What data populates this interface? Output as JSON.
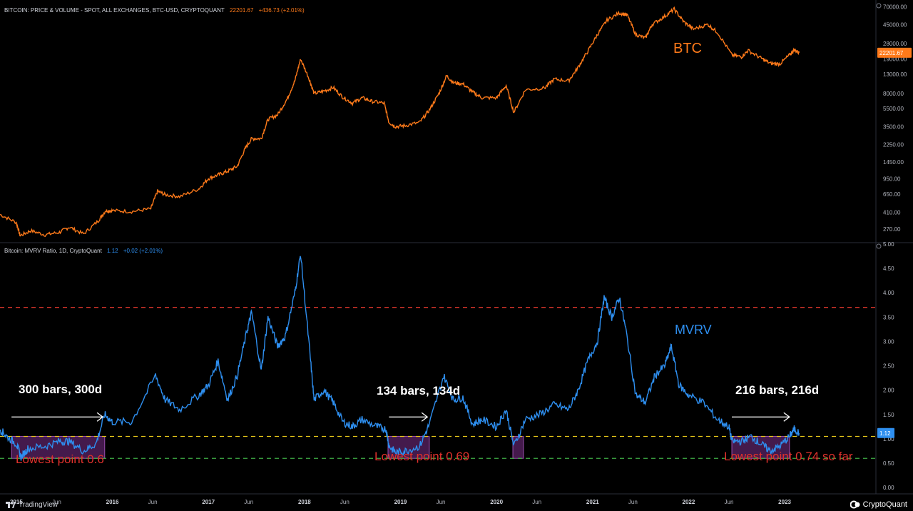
{
  "colors": {
    "background": "#000000",
    "price_line": "#ff7a1a",
    "mvrv_line": "#2e8ff0",
    "red_dashed": "#d9352b",
    "yellow_dashed": "#e6c619",
    "green_dashed": "#3fae46",
    "zone_fill": "#7b2f8a",
    "annotation_red": "#e0312c",
    "axis_text": "#b2b5be"
  },
  "top_pane": {
    "title": "BITCOIN: PRICE & VOLUME - SPOT, ALL EXCHANGES, BTC-USD, CRYPTOQUANT",
    "last_value": "22201.67",
    "change": "+436.73 (+2.01%)",
    "series_label": "BTC"
  },
  "bottom_pane": {
    "title": "Bitcoin: MVRV Ratio, 1D, CryptoQuant",
    "last_value": "1.12",
    "change": "+0.02 (+2.01%)",
    "series_label": "MVRV"
  },
  "annotations": {
    "bars_1": "300 bars, 300d",
    "bars_2": "134 bars, 134d",
    "bars_3": "216 bars, 216d",
    "low_1": "Lowest point 0.6",
    "low_2": "Lowest point 0.69",
    "low_3": "Lowest point 0.74 so far"
  },
  "footer": {
    "left_brand": "TradingView",
    "right_brand": "CryptoQuant"
  },
  "chart_data": [
    {
      "type": "line",
      "series": [
        {
          "name": "BTC",
          "values": [
            [
              2014.83,
              390
            ],
            [
              2015.0,
              320
            ],
            [
              2015.04,
              230
            ],
            [
              2015.15,
              260
            ],
            [
              2015.3,
              235
            ],
            [
              2015.45,
              250
            ],
            [
              2015.55,
              285
            ],
            [
              2015.7,
              240
            ],
            [
              2015.85,
              330
            ],
            [
              2015.93,
              430
            ],
            [
              2016.0,
              430
            ],
            [
              2016.2,
              420
            ],
            [
              2016.4,
              450
            ],
            [
              2016.47,
              700
            ],
            [
              2016.55,
              640
            ],
            [
              2016.7,
              610
            ],
            [
              2016.9,
              740
            ],
            [
              2017.0,
              960
            ],
            [
              2017.1,
              1050
            ],
            [
              2017.2,
              1150
            ],
            [
              2017.3,
              1300
            ],
            [
              2017.38,
              2000
            ],
            [
              2017.45,
              2600
            ],
            [
              2017.55,
              2600
            ],
            [
              2017.62,
              4200
            ],
            [
              2017.72,
              4700
            ],
            [
              2017.82,
              7000
            ],
            [
              2017.9,
              11000
            ],
            [
              2017.96,
              19000
            ],
            [
              2018.05,
              11500
            ],
            [
              2018.1,
              8000
            ],
            [
              2018.2,
              8500
            ],
            [
              2018.3,
              9300
            ],
            [
              2018.4,
              7300
            ],
            [
              2018.5,
              6300
            ],
            [
              2018.6,
              7200
            ],
            [
              2018.7,
              6600
            ],
            [
              2018.83,
              6300
            ],
            [
              2018.88,
              3900
            ],
            [
              2018.95,
              3500
            ],
            [
              2019.05,
              3600
            ],
            [
              2019.2,
              3900
            ],
            [
              2019.3,
              5300
            ],
            [
              2019.4,
              8000
            ],
            [
              2019.48,
              12500
            ],
            [
              2019.55,
              10500
            ],
            [
              2019.65,
              10200
            ],
            [
              2019.75,
              8300
            ],
            [
              2019.85,
              7200
            ],
            [
              2020.0,
              7200
            ],
            [
              2020.1,
              9800
            ],
            [
              2020.18,
              5000
            ],
            [
              2020.3,
              8800
            ],
            [
              2020.5,
              9200
            ],
            [
              2020.6,
              11500
            ],
            [
              2020.75,
              11000
            ],
            [
              2020.85,
              15500
            ],
            [
              2020.95,
              23000
            ],
            [
              2021.05,
              35000
            ],
            [
              2021.15,
              50000
            ],
            [
              2021.28,
              60000
            ],
            [
              2021.36,
              57000
            ],
            [
              2021.45,
              35000
            ],
            [
              2021.55,
              32000
            ],
            [
              2021.62,
              45000
            ],
            [
              2021.75,
              55000
            ],
            [
              2021.85,
              66000
            ],
            [
              2021.95,
              48000
            ],
            [
              2022.05,
              40000
            ],
            [
              2022.2,
              45000
            ],
            [
              2022.3,
              37000
            ],
            [
              2022.45,
              21000
            ],
            [
              2022.55,
              20000
            ],
            [
              2022.62,
              23500
            ],
            [
              2022.75,
              19500
            ],
            [
              2022.85,
              17000
            ],
            [
              2022.95,
              16800
            ],
            [
              2023.05,
              21000
            ],
            [
              2023.1,
              23800
            ],
            [
              2023.15,
              22201.67
            ]
          ]
        }
      ],
      "ylabel": "",
      "log_scale": true,
      "yticks": [
        "70000.00",
        "45000.00",
        "28000.00",
        "19000.00",
        "13000.00",
        "8000.00",
        "5500.00",
        "3500.00",
        "2250.00",
        "1450.00",
        "950.00",
        "650.00",
        "410.00",
        "270.00"
      ],
      "price_tag": "22201.67"
    },
    {
      "type": "line",
      "series": [
        {
          "name": "MVRV",
          "values": [
            [
              2014.83,
              1.2
            ],
            [
              2014.9,
              1.05
            ],
            [
              2015.0,
              0.9
            ],
            [
              2015.05,
              0.62
            ],
            [
              2015.12,
              0.8
            ],
            [
              2015.3,
              0.85
            ],
            [
              2015.45,
              0.95
            ],
            [
              2015.55,
              0.95
            ],
            [
              2015.7,
              0.75
            ],
            [
              2015.83,
              0.9
            ],
            [
              2015.92,
              1.5
            ],
            [
              2016.0,
              1.35
            ],
            [
              2016.2,
              1.35
            ],
            [
              2016.45,
              2.3
            ],
            [
              2016.55,
              1.8
            ],
            [
              2016.7,
              1.6
            ],
            [
              2016.9,
              1.9
            ],
            [
              2017.0,
              2.1
            ],
            [
              2017.1,
              2.6
            ],
            [
              2017.2,
              1.8
            ],
            [
              2017.3,
              2.3
            ],
            [
              2017.4,
              3.2
            ],
            [
              2017.45,
              3.6
            ],
            [
              2017.55,
              2.4
            ],
            [
              2017.62,
              3.5
            ],
            [
              2017.72,
              2.9
            ],
            [
              2017.8,
              3.1
            ],
            [
              2017.9,
              4.0
            ],
            [
              2017.96,
              4.8
            ],
            [
              2018.05,
              2.9
            ],
            [
              2018.1,
              1.8
            ],
            [
              2018.2,
              2.0
            ],
            [
              2018.3,
              1.75
            ],
            [
              2018.4,
              1.35
            ],
            [
              2018.5,
              1.25
            ],
            [
              2018.6,
              1.4
            ],
            [
              2018.75,
              1.25
            ],
            [
              2018.85,
              1.2
            ],
            [
              2018.88,
              0.85
            ],
            [
              2018.95,
              0.72
            ],
            [
              2019.05,
              0.75
            ],
            [
              2019.2,
              0.85
            ],
            [
              2019.3,
              1.3
            ],
            [
              2019.45,
              2.3
            ],
            [
              2019.55,
              1.8
            ],
            [
              2019.65,
              1.85
            ],
            [
              2019.75,
              1.3
            ],
            [
              2019.85,
              1.4
            ],
            [
              2020.0,
              1.25
            ],
            [
              2020.1,
              1.6
            ],
            [
              2020.18,
              0.85
            ],
            [
              2020.3,
              1.4
            ],
            [
              2020.45,
              1.5
            ],
            [
              2020.6,
              1.7
            ],
            [
              2020.75,
              1.6
            ],
            [
              2020.85,
              2.0
            ],
            [
              2020.95,
              2.6
            ],
            [
              2021.05,
              3.0
            ],
            [
              2021.12,
              3.9
            ],
            [
              2021.2,
              3.5
            ],
            [
              2021.28,
              3.9
            ],
            [
              2021.35,
              3.2
            ],
            [
              2021.45,
              1.9
            ],
            [
              2021.55,
              1.75
            ],
            [
              2021.65,
              2.3
            ],
            [
              2021.75,
              2.5
            ],
            [
              2021.82,
              2.9
            ],
            [
              2021.9,
              2.1
            ],
            [
              2022.0,
              1.9
            ],
            [
              2022.15,
              1.75
            ],
            [
              2022.3,
              1.4
            ],
            [
              2022.42,
              1.25
            ],
            [
              2022.45,
              0.95
            ],
            [
              2022.55,
              0.95
            ],
            [
              2022.65,
              1.05
            ],
            [
              2022.75,
              0.9
            ],
            [
              2022.85,
              0.75
            ],
            [
              2022.95,
              0.85
            ],
            [
              2023.05,
              1.05
            ],
            [
              2023.1,
              1.2
            ],
            [
              2023.15,
              1.12
            ]
          ]
        }
      ],
      "ylabel": "",
      "ylim": [
        -0.1,
        5.0
      ],
      "yticks": [
        "5.00",
        "4.50",
        "4.00",
        "3.50",
        "3.00",
        "2.50",
        "2.00",
        "1.50",
        "1.00",
        "0.50",
        "0.00"
      ],
      "price_tag": "1.12",
      "horizontal_lines": [
        {
          "value": 3.7,
          "color": "red",
          "style": "dashed"
        },
        {
          "value": 1.05,
          "color": "yellow",
          "style": "dashed"
        },
        {
          "value": 0.6,
          "color": "green",
          "style": "dashed"
        }
      ],
      "shaded_zones": [
        {
          "x_start": 2014.95,
          "x_end": 2015.92
        },
        {
          "x_start": 2018.87,
          "x_end": 2019.3
        },
        {
          "x_start": 2020.17,
          "x_end": 2020.28
        },
        {
          "x_start": 2022.45,
          "x_end": 2023.05
        }
      ],
      "arrows": [
        {
          "x_start": 2014.95,
          "x_end": 2015.9,
          "value": 1.45
        },
        {
          "x_start": 2018.88,
          "x_end": 2019.28,
          "value": 1.45
        },
        {
          "x_start": 2022.45,
          "x_end": 2023.05,
          "value": 1.45
        }
      ]
    }
  ],
  "x_axis": {
    "ticks": [
      {
        "label": "2015",
        "x": 2015.0
      },
      {
        "label": "Jun",
        "x": 2015.42
      },
      {
        "label": "2016",
        "x": 2016.0
      },
      {
        "label": "Jun",
        "x": 2016.42
      },
      {
        "label": "2017",
        "x": 2017.0
      },
      {
        "label": "Jun",
        "x": 2017.42
      },
      {
        "label": "2018",
        "x": 2018.0
      },
      {
        "label": "Jun",
        "x": 2018.42
      },
      {
        "label": "2019",
        "x": 2019.0
      },
      {
        "label": "Jun",
        "x": 2019.42
      },
      {
        "label": "2020",
        "x": 2020.0
      },
      {
        "label": "Jun",
        "x": 2020.42
      },
      {
        "label": "2021",
        "x": 2021.0
      },
      {
        "label": "Jun",
        "x": 2021.42
      },
      {
        "label": "2022",
        "x": 2022.0
      },
      {
        "label": "Jun",
        "x": 2022.42
      },
      {
        "label": "2023",
        "x": 2023.0
      }
    ]
  }
}
